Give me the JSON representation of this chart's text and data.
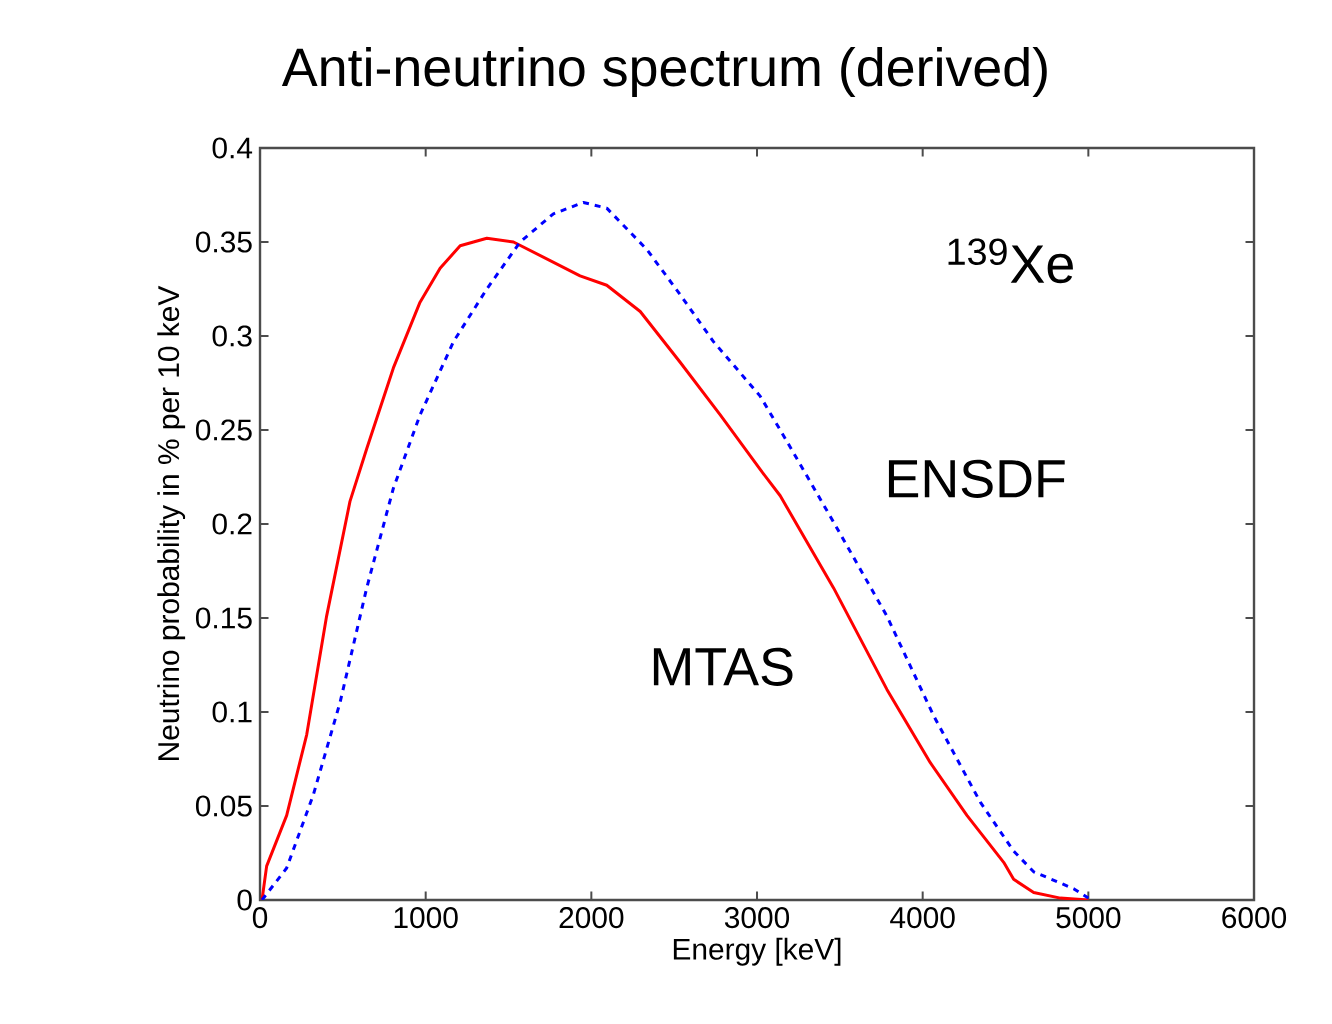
{
  "chart_data": {
    "type": "line",
    "title": "Anti-neutrino spectrum (derived)",
    "xlabel": "Energy [keV]",
    "ylabel": "Neutrino probability in % per 10 keV",
    "annotations": [
      "$^{139}$Xe"
    ],
    "xlim": [
      0,
      6000
    ],
    "ylim": [
      0,
      0.4
    ],
    "xticks": [
      0,
      1000,
      2000,
      3000,
      4000,
      5000,
      6000
    ],
    "yticks": [
      0,
      0.05,
      0.1,
      0.15,
      0.2,
      0.25,
      0.3,
      0.35,
      0.4
    ],
    "grid": false,
    "legend": false,
    "marker": "none",
    "series": [
      {
        "name": "MTAS",
        "color": "#ff0000",
        "line_style": "solid",
        "x": [
          12,
          40,
          161,
          282,
          402,
          543,
          644,
          805,
          966,
          1087,
          1208,
          1369,
          1530,
          1731,
          1932,
          2093,
          2295,
          2536,
          2778,
          3019,
          3140,
          3462,
          3784,
          4046,
          4267,
          4489,
          4549,
          4670,
          4831,
          5000
        ],
        "values": [
          0,
          0.018,
          0.045,
          0.088,
          0.151,
          0.212,
          0.24,
          0.283,
          0.318,
          0.336,
          0.348,
          0.352,
          0.35,
          0.341,
          0.332,
          0.327,
          0.313,
          0.286,
          0.258,
          0.229,
          0.215,
          0.166,
          0.112,
          0.073,
          0.045,
          0.02,
          0.011,
          0.004,
          0.001,
          0
        ]
      },
      {
        "name": "ENSDF",
        "color": "#0000ff",
        "line_style": "dashed",
        "x": [
          12,
          161,
          322,
          483,
          644,
          805,
          966,
          1168,
          1369,
          1570,
          1771,
          1952,
          2093,
          2335,
          2536,
          2737,
          3019,
          3180,
          3462,
          3784,
          4066,
          4348,
          4549,
          4670,
          4911,
          5000
        ],
        "values": [
          0,
          0.017,
          0.056,
          0.105,
          0.166,
          0.219,
          0.258,
          0.297,
          0.325,
          0.35,
          0.365,
          0.371,
          0.368,
          0.346,
          0.322,
          0.297,
          0.268,
          0.244,
          0.201,
          0.151,
          0.098,
          0.052,
          0.026,
          0.015,
          0.006,
          0.001
        ]
      }
    ]
  }
}
